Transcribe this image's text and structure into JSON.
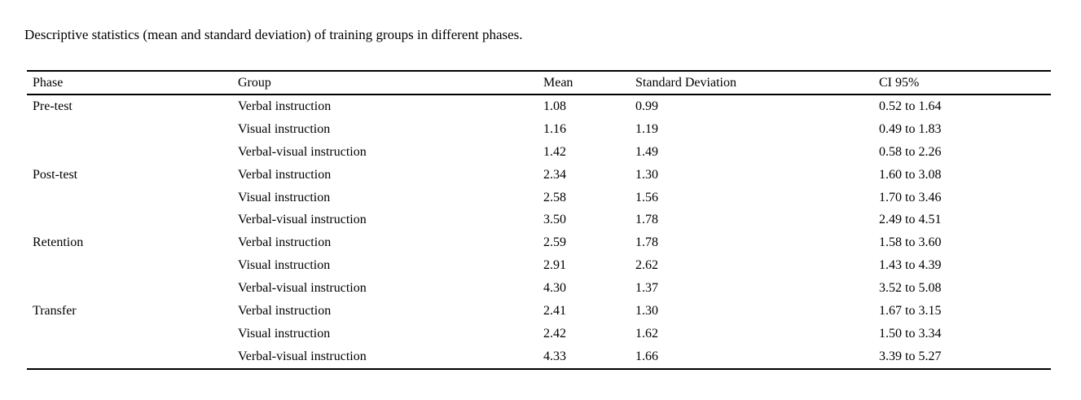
{
  "caption": "Descriptive statistics (mean and standard deviation) of training groups in different phases.",
  "table": {
    "columns": [
      "Phase",
      "Group",
      "Mean",
      "Standard Deviation",
      "CI 95%"
    ],
    "rows": [
      {
        "phase": "Pre-test",
        "group": "Verbal instruction",
        "mean": "1.08",
        "sd": "0.99",
        "ci": "0.52 to 1.64"
      },
      {
        "phase": "",
        "group": "Visual instruction",
        "mean": "1.16",
        "sd": "1.19",
        "ci": "0.49 to 1.83"
      },
      {
        "phase": "",
        "group": "Verbal-visual instruction",
        "mean": "1.42",
        "sd": "1.49",
        "ci": "0.58 to 2.26"
      },
      {
        "phase": "Post-test",
        "group": "Verbal instruction",
        "mean": "2.34",
        "sd": "1.30",
        "ci": "1.60 to 3.08"
      },
      {
        "phase": "",
        "group": "Visual instruction",
        "mean": "2.58",
        "sd": "1.56",
        "ci": "1.70 to 3.46"
      },
      {
        "phase": "",
        "group": "Verbal-visual instruction",
        "mean": "3.50",
        "sd": "1.78",
        "ci": "2.49 to 4.51"
      },
      {
        "phase": "Retention",
        "group": "Verbal instruction",
        "mean": "2.59",
        "sd": "1.78",
        "ci": "1.58 to 3.60"
      },
      {
        "phase": "",
        "group": "Visual instruction",
        "mean": "2.91",
        "sd": "2.62",
        "ci": "1.43 to 4.39"
      },
      {
        "phase": "",
        "group": "Verbal-visual instruction",
        "mean": "4.30",
        "sd": "1.37",
        "ci": "3.52 to 5.08"
      },
      {
        "phase": "Transfer",
        "group": "Verbal instruction",
        "mean": "2.41",
        "sd": "1.30",
        "ci": "1.67 to 3.15"
      },
      {
        "phase": "",
        "group": "Visual instruction",
        "mean": "2.42",
        "sd": "1.62",
        "ci": "1.50 to 3.34"
      },
      {
        "phase": "",
        "group": "Verbal-visual instruction",
        "mean": "4.33",
        "sd": "1.66",
        "ci": "3.39 to 5.27"
      }
    ]
  },
  "colors": {
    "background": "#ffffff",
    "text": "#000000",
    "rule": "#000000"
  }
}
